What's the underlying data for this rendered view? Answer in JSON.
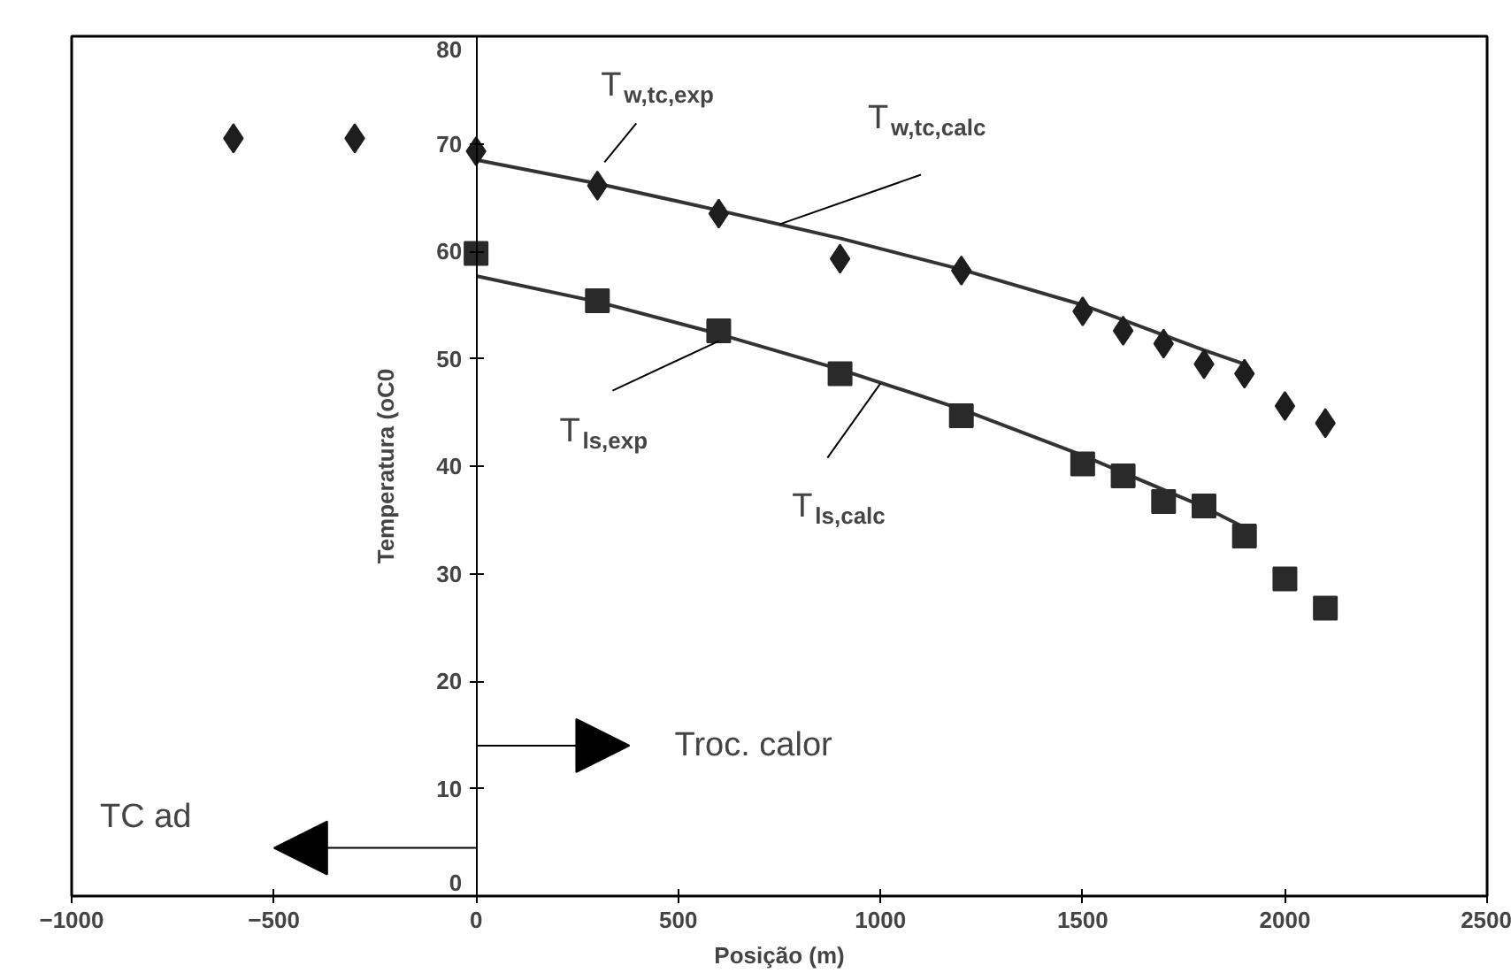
{
  "chart_data": {
    "type": "scatter",
    "xlabel": "Posição (m)",
    "ylabel": "Temperatura (oC0",
    "xlim": [
      -1000,
      2500
    ],
    "xticks": [
      -1000,
      -500,
      0,
      500,
      1000,
      1500,
      2000,
      2500
    ],
    "ylim": [
      0,
      80
    ],
    "yticks": [
      0,
      10,
      20,
      30,
      40,
      50,
      60,
      70,
      80
    ],
    "grid": false,
    "series": [
      {
        "marker": "diamond",
        "color": "#1e1e1e",
        "x": [
          -600,
          -300,
          0,
          300,
          600,
          900,
          1200,
          1500,
          1600,
          1700,
          1800,
          1900,
          2000,
          2100
        ],
        "values": [
          70.5,
          70.5,
          69.3,
          66.1,
          63.5,
          59.3,
          58.2,
          54.4,
          52.6,
          51.4,
          49.5,
          48.6,
          45.6,
          44.0
        ]
      },
      {
        "marker": "square",
        "color": "#2a2a2a",
        "x": [
          0,
          300,
          600,
          900,
          1200,
          1500,
          1600,
          1700,
          1800,
          1900,
          2000,
          2100
        ],
        "values": [
          59.8,
          55.4,
          52.6,
          48.6,
          44.7,
          40.2,
          39.1,
          36.7,
          36.3,
          33.5,
          29.5,
          26.8
        ]
      },
      {
        "type": "line",
        "line_style": "solid",
        "color": "#333333",
        "x": [
          0,
          300,
          600,
          900,
          1200,
          1500,
          1800,
          1900
        ],
        "values": [
          68.5,
          66.3,
          63.8,
          61.2,
          58.3,
          55.0,
          50.8,
          49.5
        ]
      },
      {
        "type": "line",
        "line_style": "solid",
        "color": "#333333",
        "x": [
          0,
          300,
          600,
          900,
          1200,
          1500,
          1800,
          1900
        ],
        "values": [
          57.7,
          55.3,
          52.3,
          49.0,
          45.3,
          41.0,
          36.2,
          34.3
        ]
      }
    ],
    "annotations": [
      {
        "text": "T$_{w,tc,exp}$",
        "x": 300,
        "y": 66.3
      },
      {
        "text": "T$_{w,tc,calc}$",
        "x": 750,
        "y": 62.5
      },
      {
        "text": "T$_{ls,exp}$",
        "x": 600,
        "y": 52.3
      },
      {
        "text": "T$_{ls,calc}$",
        "x": 1000,
        "y": 47.7
      },
      "Troc. calor",
      "TC ad"
    ]
  }
}
